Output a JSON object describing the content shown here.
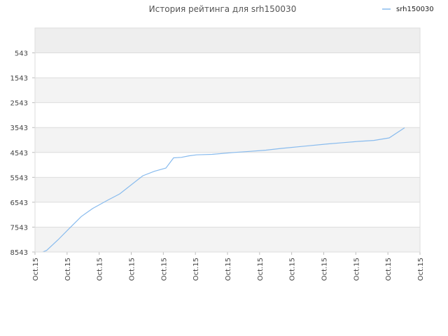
{
  "chart_data": {
    "type": "line",
    "title": "История рейтинга для srh150030",
    "xlabel": "",
    "ylabel": "",
    "inverted_y": true,
    "ylim": [
      -457,
      8543
    ],
    "y_ticks": [
      "543",
      "1543",
      "2543",
      "3543",
      "4543",
      "5543",
      "6543",
      "7543",
      "8543"
    ],
    "x_ticks": [
      "Oct.15",
      "Oct.15",
      "Oct.15",
      "Oct.15",
      "Oct.15",
      "Oct.15",
      "Oct.15",
      "Oct.15",
      "Oct.15",
      "Oct.15",
      "Oct.15",
      "Oct.15",
      "Oct.15"
    ],
    "grid": true,
    "legend": {
      "position": "top-right"
    },
    "series": [
      {
        "name": "srh150030",
        "color": "#88bbee",
        "x": [
          0.02,
          0.03,
          0.06,
          0.09,
          0.12,
          0.15,
          0.19,
          0.22,
          0.28,
          0.31,
          0.34,
          0.36,
          0.38,
          0.4,
          0.42,
          0.46,
          0.52,
          0.56,
          0.6,
          0.64,
          0.7,
          0.76,
          0.8,
          0.84,
          0.88,
          0.92,
          0.96
        ],
        "values": [
          8543,
          8480,
          8050,
          7580,
          7120,
          6790,
          6450,
          6210,
          5480,
          5300,
          5170,
          4760,
          4740,
          4680,
          4640,
          4620,
          4540,
          4500,
          4450,
          4380,
          4290,
          4200,
          4150,
          4100,
          4060,
          3960,
          3550
        ]
      }
    ]
  }
}
